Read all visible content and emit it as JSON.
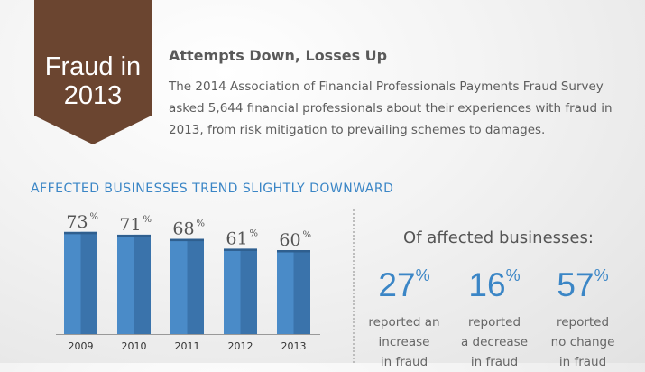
{
  "banner": {
    "line1": "Fraud in",
    "line2": "2013",
    "color": "#6b4530"
  },
  "intro": {
    "title": "Attempts Down, Losses Up",
    "body": "The 2014 Association of Financial Professionals Payments Fraud Survey asked 5,644 financial professionals about their experiences with fraud in 2013, from risk mitigation to prevailing schemes to damages."
  },
  "chart_data": {
    "type": "bar",
    "title": "AFFECTED BUSINESSES TREND SLIGHTLY DOWNWARD",
    "categories": [
      "2009",
      "2010",
      "2011",
      "2012",
      "2013"
    ],
    "values": [
      73,
      71,
      68,
      61,
      60
    ],
    "value_labels": [
      "73",
      "71",
      "68",
      "61",
      "60"
    ],
    "unit": "%",
    "ylim": [
      0,
      100
    ],
    "grid": false,
    "bar_color": "#4a8bc8",
    "bar_shade_color": "#3a73ab"
  },
  "stats": {
    "title": "Of affected businesses:",
    "items": [
      {
        "value": "27",
        "unit": "%",
        "line1": "reported an",
        "line2": "increase",
        "line3": "in fraud"
      },
      {
        "value": "16",
        "unit": "%",
        "line1": "reported",
        "line2": "a decrease",
        "line3": "in fraud"
      },
      {
        "value": "57",
        "unit": "%",
        "line1": "reported",
        "line2": "no change",
        "line3": "in fraud"
      }
    ]
  },
  "colors": {
    "accent": "#3b86c6",
    "text": "#5d5d5d"
  }
}
